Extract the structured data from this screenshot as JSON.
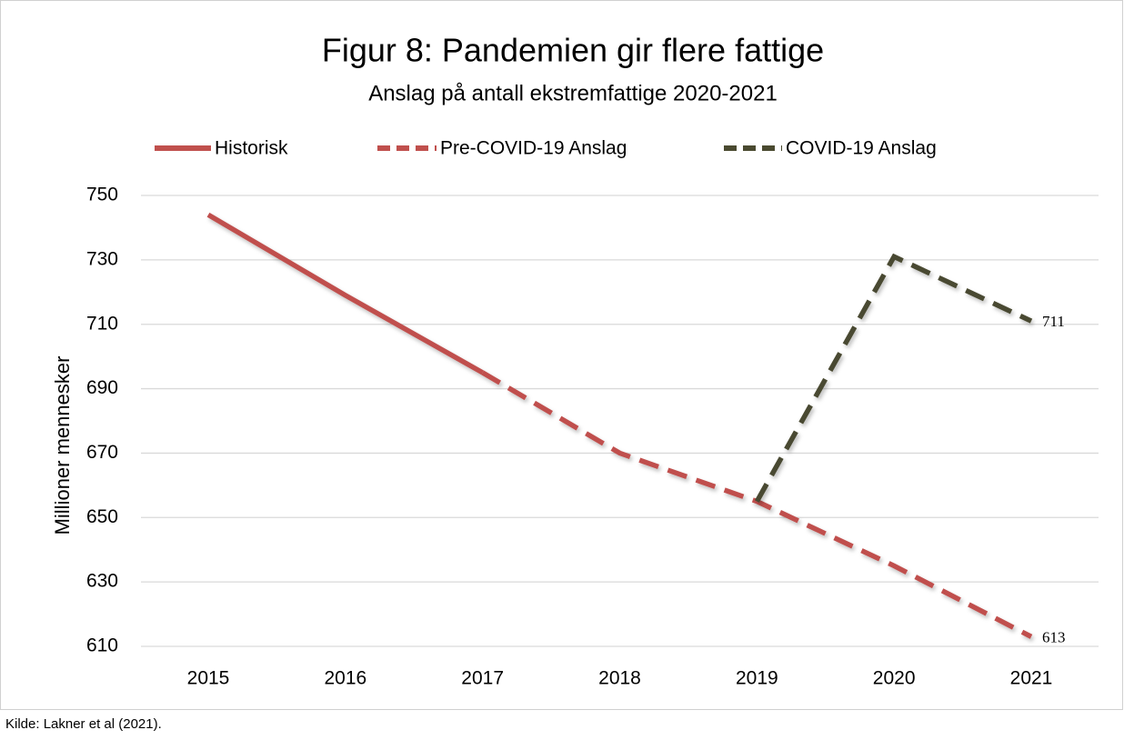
{
  "chart_data": {
    "type": "line",
    "title": "Figur 8: Pandemien gir flere fattige",
    "subtitle": "Anslag på antall ekstremfattige 2020-2021",
    "y_label": "Millioner mennesker",
    "source": "Kilde: Lakner et al (2021).",
    "categories": [
      "2015",
      "2016",
      "2017",
      "2018",
      "2019",
      "2020",
      "2021"
    ],
    "series": [
      {
        "name": "Historisk",
        "color": "#c0504d",
        "linestyle": "solid",
        "values": [
          744,
          719,
          695,
          null,
          null,
          null,
          null
        ]
      },
      {
        "name": "Pre-COVID-19 Anslag",
        "color": "#c0504d",
        "linestyle": "dashed",
        "values": [
          null,
          null,
          695,
          670,
          655,
          635,
          613
        ]
      },
      {
        "name": "COVID-19 Anslag",
        "color": "#4a4a30",
        "linestyle": "dashed",
        "values": [
          null,
          null,
          null,
          null,
          655,
          731,
          711
        ]
      }
    ],
    "ylim": [
      610,
      750
    ],
    "yticks": [
      610,
      630,
      650,
      670,
      690,
      710,
      730,
      750
    ],
    "grid": true,
    "legend": "top"
  }
}
